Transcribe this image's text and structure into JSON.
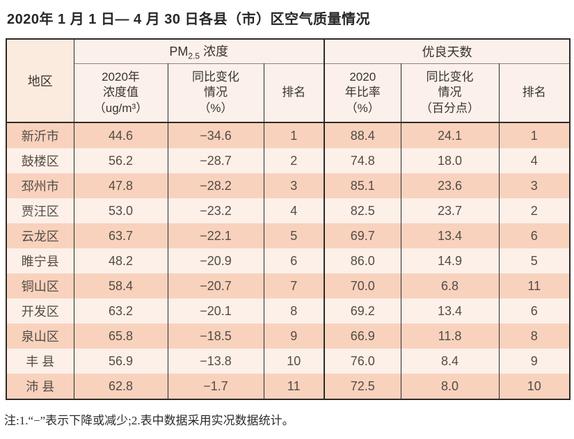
{
  "title": "2020年 1 月 1 日— 4 月 30 日各县（市）区空气质量情况",
  "note": "注:1.“−”表示下降或减少;2.表中数据采用实况数据统计。",
  "colors": {
    "row_odd_bg": "#f8d2bd",
    "row_even_bg": "#fdf0e9",
    "header_bg": "#fcf1ea",
    "region_header_bg": "#fbeade",
    "border": "#2e2a26",
    "text": "#534c45"
  },
  "table": {
    "header": {
      "region": "地区",
      "pm_group": {
        "prefix": "PM",
        "sub": "2.5",
        "suffix": " 浓度"
      },
      "good_group": "优良天数",
      "pm_value": "2020年\n浓度值\n（ug/m³）",
      "pm_change": "同比变化\n情况\n（%）",
      "pm_rank": "排名",
      "good_rate": "2020\n年比率\n（%）",
      "good_change": "同比变化\n情况\n（百分点）",
      "good_rank": "排名"
    },
    "rows": [
      {
        "region": "新沂市",
        "pm_value": "44.6",
        "pm_change": "−34.6",
        "pm_rank": "1",
        "good_rate": "88.4",
        "good_change": "24.1",
        "good_rank": "1"
      },
      {
        "region": "鼓楼区",
        "pm_value": "56.2",
        "pm_change": "−28.7",
        "pm_rank": "2",
        "good_rate": "74.8",
        "good_change": "18.0",
        "good_rank": "4"
      },
      {
        "region": "邳州市",
        "pm_value": "47.8",
        "pm_change": "−28.2",
        "pm_rank": "3",
        "good_rate": "85.1",
        "good_change": "23.6",
        "good_rank": "3"
      },
      {
        "region": "贾汪区",
        "pm_value": "53.0",
        "pm_change": "−23.2",
        "pm_rank": "4",
        "good_rate": "82.5",
        "good_change": "23.7",
        "good_rank": "2"
      },
      {
        "region": "云龙区",
        "pm_value": "63.7",
        "pm_change": "−22.1",
        "pm_rank": "5",
        "good_rate": "69.7",
        "good_change": "13.4",
        "good_rank": "6"
      },
      {
        "region": "睢宁县",
        "pm_value": "48.2",
        "pm_change": "−20.9",
        "pm_rank": "6",
        "good_rate": "86.0",
        "good_change": "14.9",
        "good_rank": "5"
      },
      {
        "region": "铜山区",
        "pm_value": "58.4",
        "pm_change": "−20.7",
        "pm_rank": "7",
        "good_rate": "70.0",
        "good_change": "6.8",
        "good_rank": "11"
      },
      {
        "region": "开发区",
        "pm_value": "63.2",
        "pm_change": "−20.1",
        "pm_rank": "8",
        "good_rate": "69.2",
        "good_change": "13.4",
        "good_rank": "6"
      },
      {
        "region": "泉山区",
        "pm_value": "65.8",
        "pm_change": "−18.5",
        "pm_rank": "9",
        "good_rate": "66.9",
        "good_change": "11.8",
        "good_rank": "8"
      },
      {
        "region": "丰 县",
        "pm_value": "56.9",
        "pm_change": "−13.8",
        "pm_rank": "10",
        "good_rate": "76.0",
        "good_change": "8.4",
        "good_rank": "9"
      },
      {
        "region": "沛 县",
        "pm_value": "62.8",
        "pm_change": "−1.7",
        "pm_rank": "11",
        "good_rate": "72.5",
        "good_change": "8.0",
        "good_rank": "10"
      }
    ]
  }
}
